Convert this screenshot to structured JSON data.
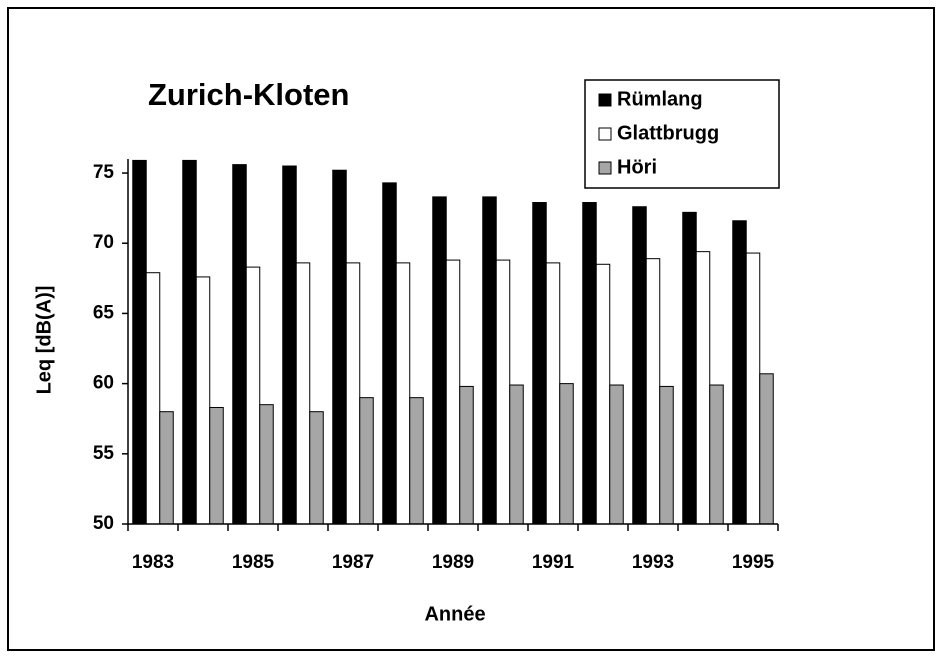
{
  "chart_data": {
    "type": "bar",
    "title": "Zurich-Kloten",
    "x_label": "Année",
    "y_label": "Leq [dB(A)]",
    "categories": [
      "1983",
      null,
      "1985",
      null,
      "1987",
      null,
      "1989",
      null,
      "1991",
      null,
      "1993",
      null,
      "1995"
    ],
    "series": [
      {
        "name": "Rümlang",
        "color": "#000000",
        "values": [
          75.9,
          75.9,
          75.6,
          75.5,
          75.2,
          74.3,
          73.3,
          73.3,
          72.9,
          72.9,
          72.6,
          72.2,
          71.6
        ]
      },
      {
        "name": "Glattbrugg",
        "color": "#ffffff",
        "values": [
          67.9,
          67.6,
          68.3,
          68.6,
          68.6,
          68.6,
          68.8,
          68.8,
          68.6,
          68.5,
          68.9,
          69.4,
          69.3
        ]
      },
      {
        "name": "Höri",
        "color": "#a6a6a6",
        "values": [
          58.0,
          58.3,
          58.5,
          58.0,
          59.0,
          59.0,
          59.8,
          59.9,
          60.0,
          59.9,
          59.8,
          59.9,
          60.7
        ]
      }
    ],
    "ylim": [
      50,
      76
    ],
    "yticks": [
      50,
      55,
      60,
      65,
      70,
      75
    ],
    "grid": false,
    "legend": "upper right"
  }
}
